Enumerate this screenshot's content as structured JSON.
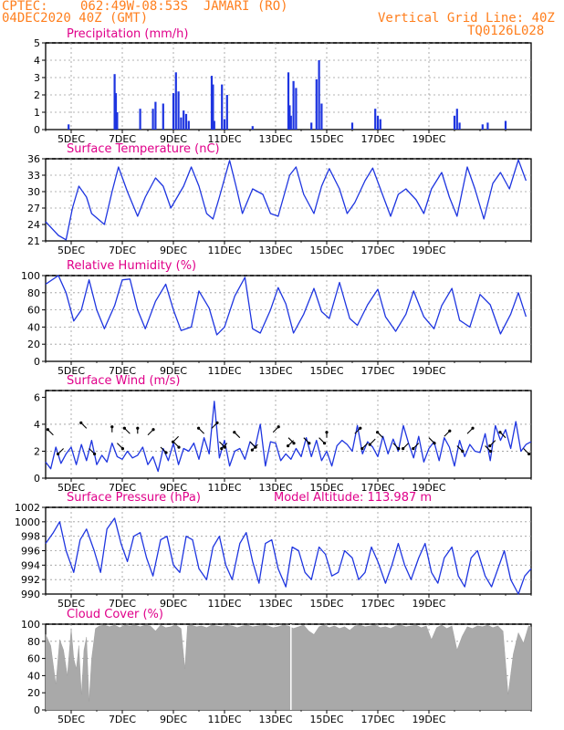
{
  "header": {
    "source": "CPTEC:",
    "location": "062:49W-08:53S  JAMARI (RO)",
    "run": "04DEC2020 40Z (GMT)",
    "grid_note": "Vertical Grid Line: 40Z",
    "model": "TQ0126L028"
  },
  "colors": {
    "header": "#ff7f1e",
    "title": "#e0008a",
    "series": "#1e35e0",
    "cloud": "#a9a9a9",
    "grid": "#9a9a9a"
  },
  "x_ticks": [
    "5DEC",
    "7DEC",
    "9DEC",
    "11DEC",
    "13DEC",
    "15DEC",
    "17DEC",
    "19DEC"
  ],
  "chart_data": [
    {
      "id": "precip",
      "type": "bar",
      "title": "Precipitation (mm/h)",
      "ylim": [
        0,
        5
      ],
      "yticks": [
        0,
        1,
        2,
        3,
        4,
        5
      ],
      "grid": true,
      "x_unit": "days since 04DEC2020 00Z",
      "x": [
        0.9,
        2.7,
        2.75,
        2.8,
        3.7,
        4.2,
        4.3,
        4.6,
        5.0,
        5.1,
        5.2,
        5.3,
        5.4,
        5.5,
        5.6,
        6.5,
        6.55,
        6.6,
        6.9,
        7.0,
        7.1,
        8.1,
        9.5,
        9.55,
        9.6,
        9.7,
        9.8,
        10.4,
        10.6,
        10.7,
        10.8,
        12.0,
        12.9,
        13.0,
        13.1,
        16.0,
        16.1,
        16.2,
        17.1,
        17.3,
        18.0
      ],
      "values": [
        0.3,
        3.2,
        2.1,
        1.0,
        1.2,
        1.2,
        1.6,
        1.5,
        2.1,
        3.3,
        2.2,
        0.7,
        1.1,
        0.9,
        0.5,
        3.1,
        2.6,
        0.5,
        2.6,
        0.6,
        2.0,
        0.2,
        3.3,
        1.4,
        0.8,
        2.8,
        2.4,
        0.4,
        2.9,
        4.0,
        1.5,
        0.4,
        1.2,
        0.8,
        0.6,
        0.8,
        1.2,
        0.4,
        0.3,
        0.4,
        0.5
      ]
    },
    {
      "id": "temp",
      "type": "line",
      "title": "Surface Temperature (nC)",
      "ylim": [
        21,
        36
      ],
      "yticks": [
        21,
        24,
        27,
        30,
        33,
        36
      ],
      "grid": true,
      "x_unit": "days since 04DEC2020 00Z",
      "x": [
        0.0,
        0.5,
        0.8,
        1.05,
        1.3,
        1.6,
        1.8,
        2.3,
        2.6,
        2.85,
        3.2,
        3.6,
        3.9,
        4.3,
        4.6,
        4.9,
        5.4,
        5.7,
        6.0,
        6.3,
        6.55,
        6.8,
        7.2,
        7.45,
        7.7,
        8.1,
        8.5,
        8.8,
        9.1,
        9.55,
        9.8,
        10.1,
        10.5,
        10.8,
        11.1,
        11.5,
        11.8,
        12.1,
        12.5,
        12.8,
        13.1,
        13.5,
        13.8,
        14.1,
        14.5,
        14.8,
        15.1,
        15.5,
        15.8,
        16.1,
        16.5,
        16.8,
        17.15,
        17.5,
        17.8,
        18.15,
        18.5,
        18.8
      ],
      "values": [
        24.5,
        22.0,
        21.2,
        27.0,
        31.0,
        29.0,
        26.0,
        24.0,
        30.0,
        34.5,
        30.0,
        25.5,
        29.0,
        32.5,
        31.0,
        27.0,
        31.0,
        34.5,
        31.0,
        26.0,
        25.0,
        29.0,
        35.7,
        31.0,
        26.0,
        30.5,
        29.5,
        26.0,
        25.5,
        33.0,
        34.5,
        29.5,
        26.0,
        31.0,
        34.2,
        30.5,
        26.0,
        28.0,
        32.0,
        34.3,
        30.5,
        25.5,
        29.5,
        30.5,
        28.5,
        26.0,
        30.5,
        33.5,
        29.0,
        25.5,
        34.5,
        30.5,
        25.0,
        31.5,
        33.5,
        30.5,
        35.8,
        32.0
      ]
    },
    {
      "id": "rh",
      "type": "line",
      "title": "Relative Humidity (%)",
      "ylim": [
        0,
        100
      ],
      "yticks": [
        0,
        20,
        40,
        60,
        80,
        100
      ],
      "grid": true,
      "x_unit": "days since 04DEC2020 00Z",
      "x": [
        0.0,
        0.5,
        0.8,
        1.1,
        1.4,
        1.7,
        2.0,
        2.3,
        2.7,
        3.0,
        3.3,
        3.6,
        3.9,
        4.3,
        4.7,
        5.0,
        5.3,
        5.7,
        6.0,
        6.4,
        6.7,
        7.0,
        7.4,
        7.8,
        8.1,
        8.4,
        8.8,
        9.1,
        9.4,
        9.7,
        10.1,
        10.5,
        10.8,
        11.1,
        11.5,
        11.9,
        12.2,
        12.6,
        13.0,
        13.3,
        13.7,
        14.1,
        14.4,
        14.8,
        15.2,
        15.5,
        15.9,
        16.2,
        16.6,
        17.0,
        17.4,
        17.8,
        18.2,
        18.5,
        18.8
      ],
      "values": [
        90.0,
        100.0,
        80.0,
        47.0,
        60.0,
        95.0,
        60.0,
        38.0,
        65.0,
        95.0,
        96.0,
        60.0,
        38.0,
        70.0,
        90.0,
        60.0,
        36.0,
        40.0,
        82.0,
        62.0,
        31.0,
        40.0,
        76.0,
        98.0,
        38.0,
        33.0,
        60.0,
        86.0,
        67.0,
        33.0,
        55.0,
        85.0,
        58.0,
        50.0,
        92.0,
        50.0,
        42.0,
        66.0,
        84.0,
        52.0,
        35.0,
        55.0,
        82.0,
        52.0,
        38.0,
        65.0,
        85.0,
        48.0,
        40.0,
        78.0,
        66.0,
        32.0,
        55.0,
        80.0,
        52.0
      ]
    },
    {
      "id": "wind",
      "type": "line",
      "title": "Surface Wind (m/s)",
      "ylim": [
        0,
        6.5
      ],
      "yticks": [
        0,
        2,
        4,
        6
      ],
      "grid": true,
      "x_unit": "days since 04DEC2020 00Z",
      "x": [
        0.0,
        0.2,
        0.4,
        0.6,
        0.8,
        1.0,
        1.2,
        1.4,
        1.6,
        1.8,
        2.0,
        2.2,
        2.4,
        2.6,
        2.8,
        3.0,
        3.2,
        3.4,
        3.6,
        3.8,
        4.0,
        4.2,
        4.4,
        4.6,
        4.8,
        5.0,
        5.2,
        5.4,
        5.6,
        5.8,
        6.0,
        6.2,
        6.4,
        6.6,
        6.8,
        7.0,
        7.2,
        7.4,
        7.6,
        7.8,
        8.0,
        8.2,
        8.4,
        8.6,
        8.8,
        9.0,
        9.2,
        9.4,
        9.6,
        9.8,
        10.0,
        10.2,
        10.4,
        10.6,
        10.8,
        11.0,
        11.2,
        11.4,
        11.6,
        11.8,
        12.0,
        12.2,
        12.4,
        12.6,
        12.8,
        13.0,
        13.2,
        13.4,
        13.6,
        13.8,
        14.0,
        14.2,
        14.4,
        14.6,
        14.8,
        15.0,
        15.2,
        15.4,
        15.6,
        15.8,
        16.0,
        16.2,
        16.4,
        16.6,
        16.8,
        17.0,
        17.2,
        17.4,
        17.6,
        17.8,
        18.0,
        18.2,
        18.4,
        18.6,
        18.8,
        19.0
      ],
      "values": [
        1.2,
        0.7,
        2.3,
        1.1,
        1.8,
        2.3,
        1.0,
        2.5,
        1.3,
        2.8,
        1.0,
        1.7,
        1.2,
        2.6,
        1.6,
        1.4,
        2.0,
        1.5,
        1.7,
        2.3,
        1.0,
        1.6,
        0.5,
        2.2,
        1.3,
        2.6,
        1.0,
        2.2,
        2.0,
        2.6,
        1.4,
        3.0,
        1.8,
        5.7,
        1.5,
        2.8,
        0.9,
        2.0,
        2.2,
        1.4,
        2.7,
        2.3,
        4.0,
        0.9,
        2.7,
        2.6,
        1.3,
        1.8,
        1.4,
        2.2,
        1.6,
        3.0,
        1.6,
        2.8,
        1.3,
        2.0,
        0.9,
        2.4,
        2.8,
        2.5,
        2.0,
        3.9,
        1.8,
        2.7,
        2.3,
        1.6,
        3.1,
        1.8,
        2.9,
        2.0,
        3.9,
        2.6,
        1.5,
        3.1,
        1.2,
        2.2,
        2.7,
        1.3,
        3.0,
        2.3,
        0.9,
        2.8,
        1.6,
        2.5,
        2.0,
        1.9,
        3.3,
        1.3,
        3.9,
        2.8,
        3.6,
        2.2,
        4.2,
        2.0,
        2.5,
        2.7
      ]
    },
    {
      "id": "pressure",
      "type": "line",
      "title": "Surface Pressure (hPa)",
      "annotation": "Model Altitude: 113.987  m",
      "ylim": [
        990,
        1002
      ],
      "yticks": [
        990,
        992,
        994,
        996,
        998,
        1000,
        1002
      ],
      "grid": true,
      "x_unit": "days since 04DEC2020 00Z",
      "x": [
        0.0,
        0.3,
        0.55,
        0.8,
        1.1,
        1.35,
        1.6,
        1.9,
        2.15,
        2.4,
        2.7,
        2.95,
        3.2,
        3.45,
        3.7,
        3.95,
        4.2,
        4.5,
        4.75,
        5.0,
        5.25,
        5.5,
        5.75,
        6.0,
        6.3,
        6.55,
        6.8,
        7.05,
        7.3,
        7.6,
        7.85,
        8.1,
        8.35,
        8.6,
        8.85,
        9.1,
        9.4,
        9.65,
        9.9,
        10.15,
        10.4,
        10.7,
        10.95,
        11.2,
        11.45,
        11.7,
        12.0,
        12.25,
        12.5,
        12.75,
        13.0,
        13.3,
        13.55,
        13.8,
        14.05,
        14.3,
        14.6,
        14.85,
        15.1,
        15.35,
        15.6,
        15.9,
        16.15,
        16.4,
        16.65,
        16.9,
        17.2,
        17.45,
        17.7,
        17.95,
        18.2,
        18.5,
        18.75,
        19.0
      ],
      "values": [
        997.0,
        998.5,
        1000.0,
        996.0,
        993.0,
        997.5,
        999.0,
        996.0,
        993.0,
        999.0,
        1000.5,
        997.0,
        994.5,
        998.0,
        998.5,
        995.0,
        992.5,
        997.5,
        998.0,
        994.0,
        993.0,
        998.0,
        997.5,
        993.5,
        992.0,
        996.5,
        998.0,
        994.0,
        992.0,
        997.0,
        998.5,
        994.5,
        991.5,
        997.0,
        997.5,
        993.5,
        991.0,
        996.5,
        996.0,
        993.0,
        992.0,
        996.5,
        995.5,
        992.5,
        993.0,
        996.0,
        995.0,
        992.0,
        993.0,
        996.5,
        994.5,
        991.5,
        994.0,
        997.0,
        994.0,
        992.0,
        995.0,
        997.0,
        993.0,
        991.5,
        995.0,
        996.5,
        992.5,
        991.0,
        995.0,
        996.0,
        992.5,
        991.0,
        993.5,
        996.0,
        992.0,
        990.0,
        992.5,
        993.5
      ]
    },
    {
      "id": "cloud",
      "type": "area",
      "title": "Cloud Cover (%)",
      "ylim": [
        0,
        100
      ],
      "yticks": [
        0,
        20,
        40,
        60,
        80,
        100
      ],
      "grid": true,
      "x_unit": "days since 04DEC2020 00Z",
      "x": [
        0.0,
        0.2,
        0.4,
        0.55,
        0.7,
        0.85,
        1.0,
        1.1,
        1.2,
        1.3,
        1.4,
        1.5,
        1.6,
        1.7,
        1.8,
        1.95,
        2.1,
        2.3,
        2.5,
        2.7,
        2.9,
        3.1,
        3.3,
        3.5,
        3.7,
        3.9,
        4.1,
        4.3,
        4.5,
        4.7,
        4.9,
        5.1,
        5.3,
        5.45,
        5.55,
        5.7,
        5.9,
        6.1,
        6.3,
        6.5,
        6.7,
        6.9,
        7.1,
        7.3,
        7.5,
        7.7,
        7.9,
        8.1,
        8.3,
        8.5,
        8.7,
        8.9,
        9.1,
        9.3,
        9.5,
        9.7,
        9.9,
        10.1,
        10.3,
        10.5,
        10.7,
        10.9,
        11.1,
        11.3,
        11.5,
        11.7,
        11.9,
        12.1,
        12.3,
        12.5,
        12.7,
        12.9,
        13.1,
        13.3,
        13.5,
        13.7,
        13.9,
        14.1,
        14.3,
        14.5,
        14.7,
        14.9,
        15.1,
        15.3,
        15.5,
        15.7,
        15.9,
        16.1,
        16.3,
        16.5,
        16.7,
        16.9,
        17.1,
        17.3,
        17.5,
        17.7,
        17.9,
        18.1,
        18.3,
        18.5,
        18.7,
        18.9,
        19.0
      ],
      "values": [
        88,
        75,
        30,
        82,
        70,
        40,
        95,
        60,
        48,
        75,
        18,
        70,
        85,
        10,
        60,
        95,
        98,
        99,
        97,
        99,
        96,
        99,
        98,
        99,
        97,
        99,
        98,
        92,
        99,
        96,
        97,
        99,
        95,
        48,
        98,
        99,
        97,
        98,
        96,
        99,
        98,
        97,
        99,
        98,
        96,
        98,
        99,
        97,
        98,
        99,
        98,
        96,
        97,
        99,
        98,
        95,
        97,
        99,
        92,
        88,
        97,
        99,
        96,
        98,
        95,
        97,
        93,
        98,
        99,
        97,
        98,
        99,
        96,
        97,
        95,
        98,
        99,
        97,
        98,
        99,
        96,
        98,
        82,
        96,
        99,
        95,
        98,
        70,
        86,
        97,
        95,
        98,
        97,
        99,
        96,
        98,
        92,
        18,
        65,
        90,
        78,
        98,
        97
      ]
    }
  ]
}
